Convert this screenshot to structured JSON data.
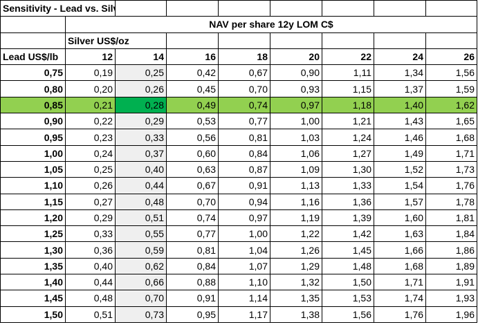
{
  "title": "Sensitivity - Lead vs. Silver price",
  "subtitle": "NAV per share 12y LOM C$",
  "silver_label": "Silver US$/oz",
  "lead_label": "Lead US$/lb",
  "silver_prices": [
    "12",
    "14",
    "16",
    "18",
    "20",
    "22",
    "24",
    "26"
  ],
  "rows": [
    {
      "lead": "0,75",
      "values": [
        "0,19",
        "0,25",
        "0,42",
        "0,67",
        "0,90",
        "1,11",
        "1,34",
        "1,56"
      ]
    },
    {
      "lead": "0,80",
      "values": [
        "0,20",
        "0,26",
        "0,45",
        "0,70",
        "0,93",
        "1,15",
        "1,37",
        "1,59"
      ]
    },
    {
      "lead": "0,85",
      "values": [
        "0,21",
        "0,28",
        "0,49",
        "0,74",
        "0,97",
        "1,18",
        "1,40",
        "1,62"
      ]
    },
    {
      "lead": "0,90",
      "values": [
        "0,22",
        "0,29",
        "0,53",
        "0,77",
        "1,00",
        "1,21",
        "1,43",
        "1,65"
      ]
    },
    {
      "lead": "0,95",
      "values": [
        "0,23",
        "0,33",
        "0,56",
        "0,81",
        "1,03",
        "1,24",
        "1,46",
        "1,68"
      ]
    },
    {
      "lead": "1,00",
      "values": [
        "0,24",
        "0,37",
        "0,60",
        "0,84",
        "1,06",
        "1,27",
        "1,49",
        "1,71"
      ]
    },
    {
      "lead": "1,05",
      "values": [
        "0,25",
        "0,40",
        "0,63",
        "0,87",
        "1,09",
        "1,30",
        "1,52",
        "1,73"
      ]
    },
    {
      "lead": "1,10",
      "values": [
        "0,26",
        "0,44",
        "0,67",
        "0,91",
        "1,13",
        "1,33",
        "1,54",
        "1,76"
      ]
    },
    {
      "lead": "1,15",
      "values": [
        "0,27",
        "0,48",
        "0,70",
        "0,94",
        "1,16",
        "1,36",
        "1,57",
        "1,78"
      ]
    },
    {
      "lead": "1,20",
      "values": [
        "0,29",
        "0,51",
        "0,74",
        "0,97",
        "1,19",
        "1,39",
        "1,60",
        "1,81"
      ]
    },
    {
      "lead": "1,25",
      "values": [
        "0,33",
        "0,55",
        "0,77",
        "1,00",
        "1,22",
        "1,42",
        "1,63",
        "1,84"
      ]
    },
    {
      "lead": "1,30",
      "values": [
        "0,36",
        "0,59",
        "0,81",
        "1,04",
        "1,26",
        "1,45",
        "1,66",
        "1,86"
      ]
    },
    {
      "lead": "1,35",
      "values": [
        "0,40",
        "0,62",
        "0,84",
        "1,07",
        "1,29",
        "1,48",
        "1,68",
        "1,89"
      ]
    },
    {
      "lead": "1,40",
      "values": [
        "0,44",
        "0,66",
        "0,88",
        "1,10",
        "1,32",
        "1,50",
        "1,71",
        "1,91"
      ]
    },
    {
      "lead": "1,45",
      "values": [
        "0,48",
        "0,70",
        "0,91",
        "1,14",
        "1,35",
        "1,53",
        "1,74",
        "1,93"
      ]
    },
    {
      "lead": "1,50",
      "values": [
        "0,51",
        "0,73",
        "0,95",
        "1,17",
        "1,38",
        "1,56",
        "1,76",
        "1,96"
      ]
    }
  ],
  "highlight_row": "0,85",
  "highlight_column": "14",
  "colors": {
    "row_highlight": "#92d050",
    "cell_highlight": "#00b050",
    "column_shade": "#efefef"
  }
}
